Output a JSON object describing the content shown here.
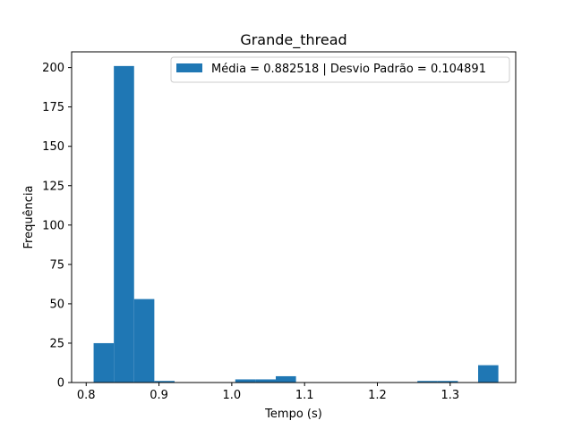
{
  "chart_data": {
    "type": "bar",
    "title": "Grande_thread",
    "xlabel": "Tempo (s)",
    "ylabel": "Frequência",
    "xlim": [
      0.78,
      1.39
    ],
    "ylim": [
      0,
      210
    ],
    "xticks": [
      0.8,
      0.9,
      1.0,
      1.1,
      1.2,
      1.3
    ],
    "xtick_labels": [
      "0.8",
      "0.9",
      "1.0",
      "1.1",
      "1.2",
      "1.3"
    ],
    "yticks": [
      0,
      25,
      50,
      75,
      100,
      125,
      150,
      175,
      200
    ],
    "ytick_labels": [
      "0",
      "25",
      "50",
      "75",
      "100",
      "125",
      "150",
      "175",
      "200"
    ],
    "bin_edges": [
      0.8102,
      0.838,
      0.8658,
      0.8936,
      0.9214,
      0.9492,
      0.977,
      1.0048,
      1.0326,
      1.0604,
      1.0882,
      1.116,
      1.1438,
      1.1716,
      1.1994,
      1.2272,
      1.255,
      1.2828,
      1.3106,
      1.3384,
      1.3662
    ],
    "values": [
      25,
      201,
      53,
      1,
      0,
      0,
      0,
      2,
      2,
      4,
      0,
      0,
      0,
      0,
      0,
      0,
      1,
      1,
      0,
      11
    ],
    "color": "#1f77b4",
    "legend": {
      "position": "top-right",
      "entries": [
        "Média = 0.882518 | Desvio Padrão = 0.104891"
      ]
    },
    "grid": false
  }
}
